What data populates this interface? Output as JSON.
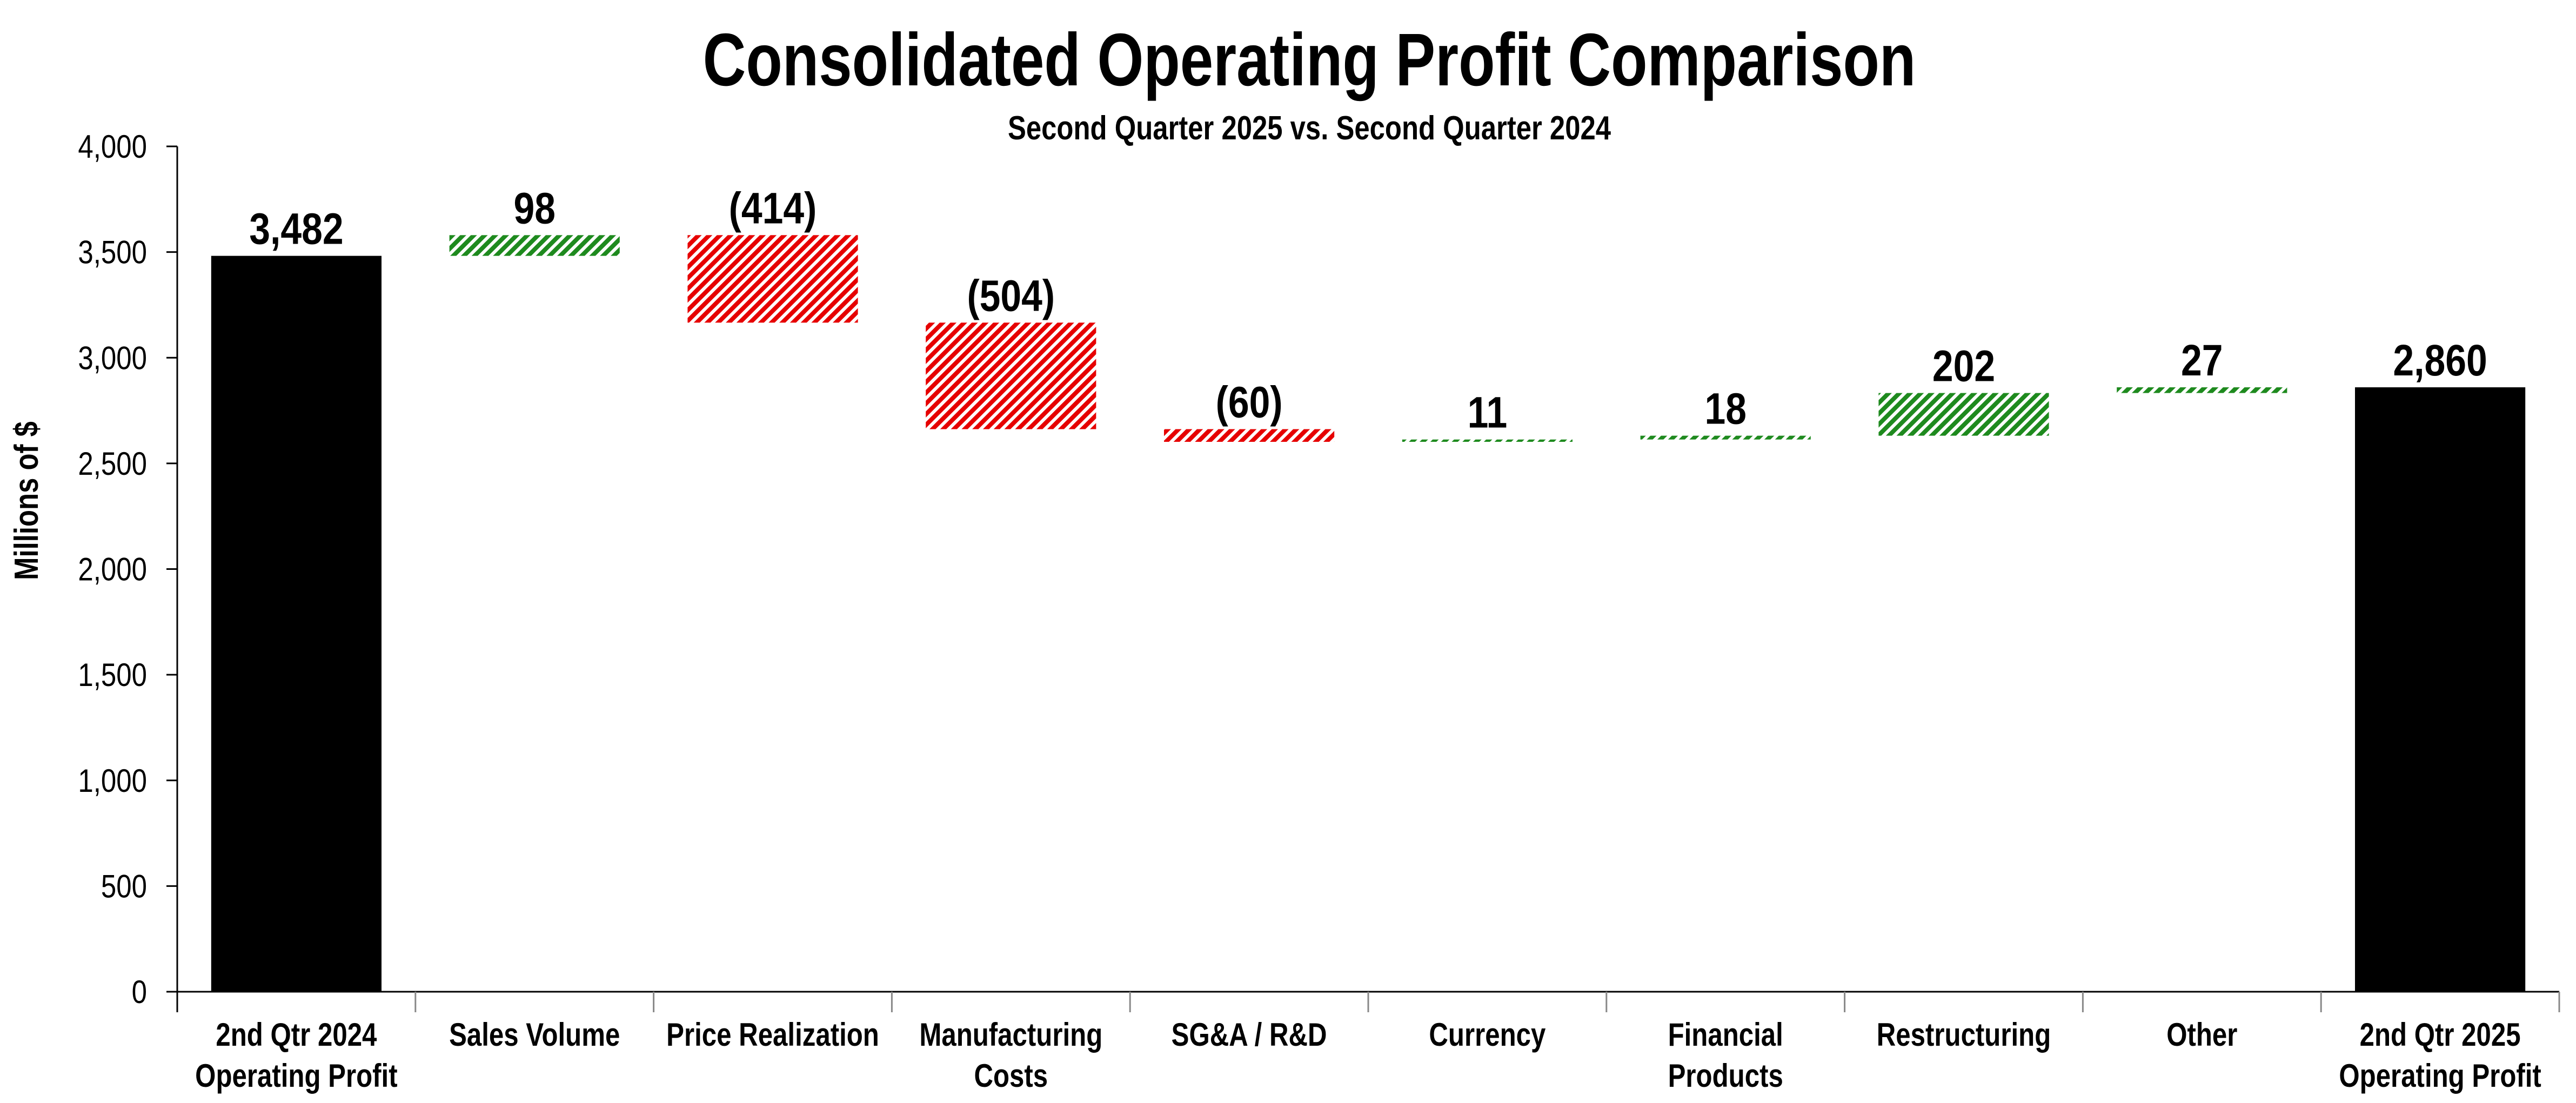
{
  "chart_data": {
    "type": "bar",
    "subtype": "waterfall",
    "title": "Consolidated Operating Profit Comparison",
    "subtitle": "Second Quarter 2025 vs. Second Quarter 2024",
    "xlabel": "",
    "ylabel": "Millions of $",
    "ylim": [
      0,
      4000
    ],
    "yticks": [
      0,
      500,
      1000,
      1500,
      2000,
      2500,
      3000,
      3500,
      4000
    ],
    "ytick_labels": [
      "0",
      "500",
      "1,000",
      "1,500",
      "2,000",
      "2,500",
      "3,000",
      "3,500",
      "4,000"
    ],
    "grid": false,
    "legend": "none",
    "categories": [
      [
        "2nd Qtr 2024",
        "Operating Profit"
      ],
      [
        "Sales Volume"
      ],
      [
        "Price Realization"
      ],
      [
        "Manufacturing",
        "Costs"
      ],
      [
        "SG&A / R&D"
      ],
      [
        "Currency"
      ],
      [
        "Financial",
        "Products"
      ],
      [
        "Restructuring"
      ],
      [
        "Other"
      ],
      [
        "2nd Qtr 2025",
        "Operating Profit"
      ]
    ],
    "values": [
      3482,
      98,
      -414,
      -504,
      -60,
      11,
      18,
      202,
      27,
      2860
    ],
    "kinds": [
      "total",
      "delta",
      "delta",
      "delta",
      "delta",
      "delta",
      "delta",
      "delta",
      "delta",
      "total"
    ],
    "data_labels": [
      "3,482",
      "98",
      "(414)",
      "(504)",
      "(60)",
      "11",
      "18",
      "202",
      "27",
      "2,860"
    ],
    "colors": {
      "total": "#000000",
      "increase": "#1e8a1e",
      "decrease": "#e60000"
    }
  }
}
